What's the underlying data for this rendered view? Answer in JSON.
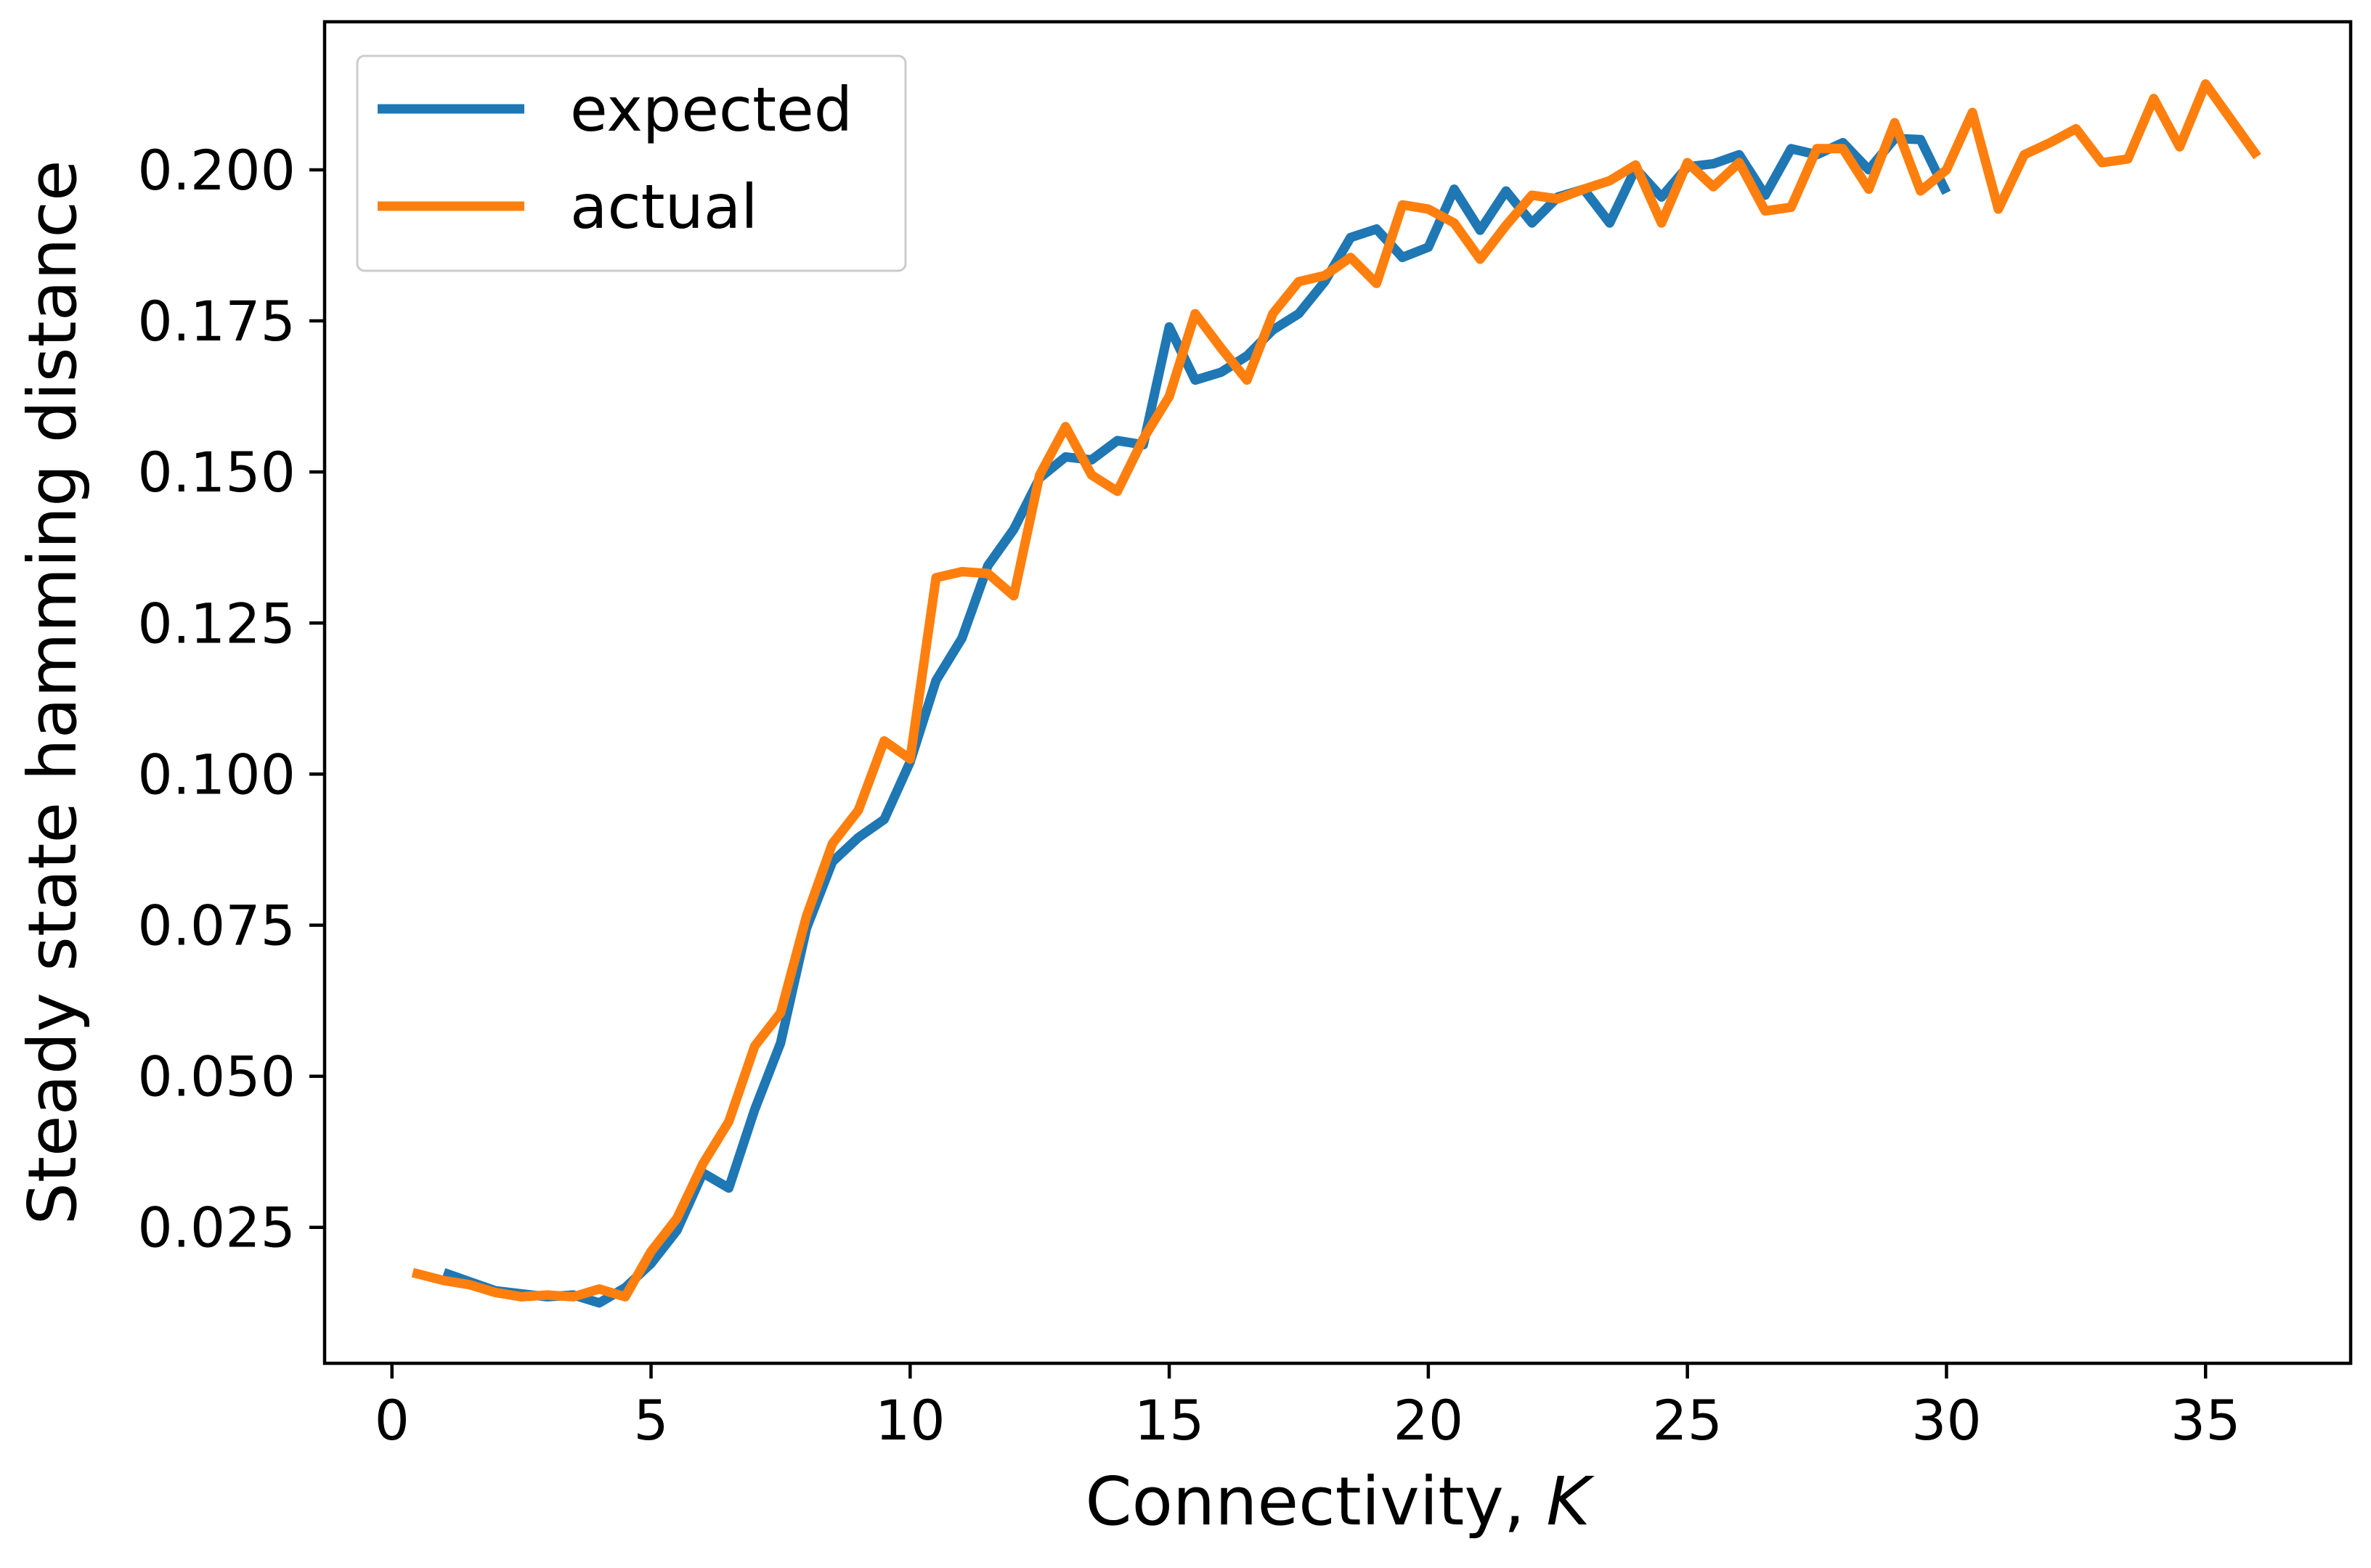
{
  "chart_data": {
    "type": "line",
    "title": "",
    "xlabel": "Connectivity, ",
    "xlabel_var": "K",
    "ylabel": "Steady state hamming distance",
    "xlim": [
      -1.3,
      37.8
    ],
    "ylim": [
      0.0025,
      0.2245
    ],
    "xticks": [
      0,
      5,
      10,
      15,
      20,
      25,
      30,
      35
    ],
    "xtick_labels": [
      "0",
      "5",
      "10",
      "15",
      "20",
      "25",
      "30",
      "35"
    ],
    "yticks": [
      0.025,
      0.05,
      0.075,
      0.1,
      0.125,
      0.15,
      0.175,
      0.2
    ],
    "ytick_labels": [
      "0.025",
      "0.050",
      "0.075",
      "0.100",
      "0.125",
      "0.150",
      "0.175",
      "0.200"
    ],
    "grid": false,
    "legend_position": "top-left",
    "series": [
      {
        "name": "expected",
        "color": "#1f77b4",
        "x": [
          1,
          1.5,
          2,
          2.5,
          3,
          3.5,
          4,
          4.5,
          5,
          5.5,
          6,
          6.5,
          7,
          7.5,
          8,
          8.5,
          9,
          9.5,
          10,
          10.5,
          11,
          11.5,
          12,
          12.5,
          13,
          13.5,
          14,
          14.5,
          15,
          15.5,
          16,
          16.5,
          17,
          17.5,
          18,
          18.5,
          19,
          19.5,
          20,
          20.5,
          21,
          21.5,
          22,
          22.5,
          23,
          23.5,
          24,
          24.5,
          25,
          25.5,
          26,
          26.5,
          27,
          27.5,
          28,
          28.5,
          29,
          29.5,
          30
        ],
        "y": [
          0.0175,
          0.016,
          0.0145,
          0.014,
          0.0135,
          0.0138,
          0.0125,
          0.015,
          0.019,
          0.0245,
          0.034,
          0.0315,
          0.0445,
          0.0555,
          0.0745,
          0.0855,
          0.0895,
          0.0925,
          0.102,
          0.1155,
          0.1225,
          0.1345,
          0.1405,
          0.149,
          0.1525,
          0.152,
          0.1552,
          0.1545,
          0.174,
          0.1652,
          0.1665,
          0.1692,
          0.1735,
          0.1762,
          0.1815,
          0.1888,
          0.1902,
          0.1855,
          0.1872,
          0.1968,
          0.19,
          0.1965,
          0.1912,
          0.1955,
          0.1968,
          0.1912,
          0.2002,
          0.1955,
          0.2005,
          0.201,
          0.2025,
          0.1958,
          0.2035,
          0.2025,
          0.2045,
          0.2,
          0.2052,
          0.205,
          0.1962
        ]
      },
      {
        "name": "actual",
        "color": "#ff7f0e",
        "x": [
          0.4,
          1,
          1.5,
          2,
          2.5,
          3,
          3.5,
          4,
          4.5,
          5,
          5.5,
          6,
          6.5,
          7,
          7.5,
          8,
          8.5,
          9,
          9.5,
          10,
          10.5,
          11,
          11.5,
          12,
          12.5,
          13,
          13.5,
          14,
          14.5,
          15,
          15.5,
          16,
          16.5,
          17,
          17.5,
          18,
          18.5,
          19,
          19.5,
          20,
          20.5,
          21,
          21.5,
          22,
          22.5,
          23,
          23.5,
          24,
          24.5,
          25,
          25.5,
          26,
          26.5,
          27,
          27.5,
          28,
          28.5,
          29,
          29.5,
          30,
          30.5,
          31,
          31.5,
          32,
          32.5,
          33,
          33.5,
          34,
          34.5,
          35,
          35.5,
          36
        ],
        "y": [
          0.0175,
          0.0162,
          0.0155,
          0.0142,
          0.0135,
          0.0138,
          0.0135,
          0.0148,
          0.0135,
          0.021,
          0.0265,
          0.0355,
          0.0425,
          0.055,
          0.0605,
          0.0765,
          0.0885,
          0.094,
          0.1055,
          0.1025,
          0.1325,
          0.1335,
          0.1332,
          0.1295,
          0.1495,
          0.1575,
          0.1495,
          0.1468,
          0.1555,
          0.1625,
          0.1762,
          0.1705,
          0.1652,
          0.1762,
          0.1815,
          0.1825,
          0.1855,
          0.1812,
          0.1942,
          0.1935,
          0.1912,
          0.1852,
          0.1908,
          0.1958,
          0.1952,
          0.1968,
          0.1982,
          0.2008,
          0.1912,
          0.2012,
          0.1972,
          0.2012,
          0.1932,
          0.1938,
          0.2035,
          0.2035,
          0.1968,
          0.2078,
          0.1965,
          0.2,
          0.2095,
          0.1935,
          0.2025,
          0.2045,
          0.2068,
          0.2012,
          0.2018,
          0.2118,
          0.2038,
          0.2142,
          0.2082,
          0.2022
        ]
      }
    ]
  }
}
